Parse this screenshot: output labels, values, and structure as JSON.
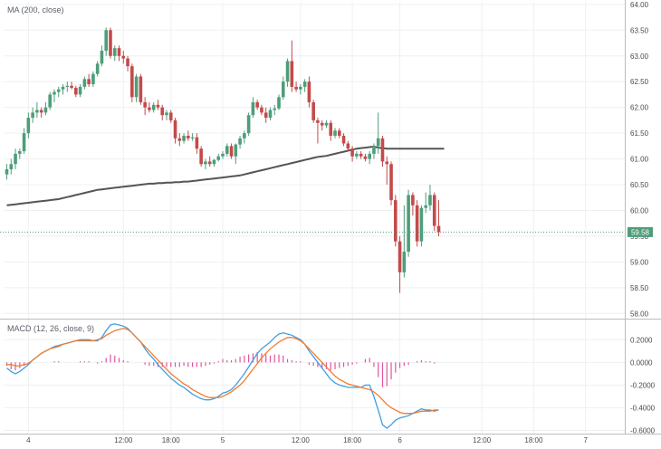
{
  "chart_data": [
    {
      "type": "candlestick",
      "legend": "MA (200, close)",
      "ylim": [
        57.9,
        64.05
      ],
      "yticks": [
        "64.00",
        "63.50",
        "63.00",
        "62.50",
        "62.00",
        "61.50",
        "61.00",
        "60.50",
        "60.00",
        "59.58",
        "59.00",
        "58.50",
        "58.00"
      ],
      "ytick_values": [
        64.0,
        63.5,
        63.0,
        62.5,
        62.0,
        61.5,
        61.0,
        60.5,
        60.0,
        59.5,
        59.0,
        58.5,
        58.0
      ],
      "last_price_label": "59.58",
      "last_price": 59.58,
      "colors": {
        "up": "#4e9d7a",
        "down": "#c44a4a",
        "ma": "#555555",
        "price_line": "#4e9d7a"
      },
      "candles": [
        [
          60.7,
          60.9,
          60.6,
          60.8
        ],
        [
          60.8,
          61.0,
          60.7,
          60.9
        ],
        [
          60.9,
          61.2,
          60.8,
          61.1
        ],
        [
          61.1,
          61.2,
          61.0,
          61.15
        ],
        [
          61.15,
          61.6,
          61.1,
          61.5
        ],
        [
          61.5,
          61.9,
          61.4,
          61.8
        ],
        [
          61.8,
          62.0,
          61.7,
          61.9
        ],
        [
          61.9,
          62.1,
          61.8,
          61.95
        ],
        [
          61.95,
          62.0,
          61.8,
          61.9
        ],
        [
          61.9,
          62.1,
          61.85,
          62.0
        ],
        [
          62.0,
          62.3,
          61.95,
          62.25
        ],
        [
          62.25,
          62.35,
          62.1,
          62.3
        ],
        [
          62.3,
          62.4,
          62.2,
          62.35
        ],
        [
          62.35,
          62.45,
          62.25,
          62.4
        ],
        [
          62.4,
          62.5,
          62.3,
          62.42
        ],
        [
          62.42,
          62.5,
          62.35,
          62.38
        ],
        [
          62.38,
          62.42,
          62.2,
          62.25
        ],
        [
          62.25,
          62.45,
          62.2,
          62.4
        ],
        [
          62.4,
          62.6,
          62.35,
          62.55
        ],
        [
          62.55,
          62.65,
          62.4,
          62.45
        ],
        [
          62.45,
          62.7,
          62.4,
          62.65
        ],
        [
          62.65,
          62.9,
          62.6,
          62.85
        ],
        [
          62.85,
          63.2,
          62.8,
          63.1
        ],
        [
          63.1,
          63.55,
          63.0,
          63.5
        ],
        [
          63.5,
          63.55,
          62.95,
          63.0
        ],
        [
          63.0,
          63.2,
          62.9,
          63.15
        ],
        [
          63.15,
          63.2,
          62.9,
          63.0
        ],
        [
          63.0,
          63.1,
          62.85,
          62.95
        ],
        [
          62.95,
          63.0,
          62.7,
          62.8
        ],
        [
          62.8,
          62.85,
          62.1,
          62.2
        ],
        [
          62.2,
          62.65,
          62.1,
          62.6
        ],
        [
          62.6,
          62.65,
          62.05,
          62.1
        ],
        [
          62.1,
          62.2,
          61.85,
          62.0
        ],
        [
          62.0,
          62.1,
          61.9,
          61.95
        ],
        [
          61.95,
          62.1,
          61.9,
          62.05
        ],
        [
          62.05,
          62.15,
          61.95,
          62.0
        ],
        [
          62.0,
          62.05,
          61.75,
          61.85
        ],
        [
          61.85,
          61.95,
          61.75,
          61.9
        ],
        [
          61.9,
          61.95,
          61.7,
          61.75
        ],
        [
          61.75,
          61.8,
          61.3,
          61.4
        ],
        [
          61.4,
          61.5,
          61.25,
          61.35
        ],
        [
          61.35,
          61.5,
          61.3,
          61.45
        ],
        [
          61.45,
          61.55,
          61.35,
          61.4
        ],
        [
          61.4,
          61.5,
          61.35,
          61.42
        ],
        [
          61.42,
          61.5,
          61.1,
          61.2
        ],
        [
          61.2,
          61.25,
          60.85,
          60.9
        ],
        [
          60.9,
          61.0,
          60.8,
          60.95
        ],
        [
          60.95,
          61.05,
          60.85,
          60.9
        ],
        [
          60.9,
          61.0,
          60.85,
          60.98
        ],
        [
          60.98,
          61.1,
          60.95,
          61.05
        ],
        [
          61.05,
          61.15,
          61.0,
          61.1
        ],
        [
          61.1,
          61.3,
          61.05,
          61.25
        ],
        [
          61.25,
          61.3,
          61.0,
          61.05
        ],
        [
          61.05,
          61.3,
          60.9,
          61.28
        ],
        [
          61.28,
          61.45,
          61.2,
          61.4
        ],
        [
          61.4,
          61.55,
          61.3,
          61.5
        ],
        [
          61.5,
          61.9,
          61.45,
          61.85
        ],
        [
          61.85,
          62.2,
          61.8,
          62.1
        ],
        [
          62.1,
          62.15,
          61.95,
          62.0
        ],
        [
          62.0,
          62.05,
          61.85,
          61.9
        ],
        [
          61.9,
          62.0,
          61.7,
          61.8
        ],
        [
          61.8,
          62.0,
          61.75,
          61.95
        ],
        [
          61.95,
          62.05,
          61.85,
          61.98
        ],
        [
          61.98,
          62.25,
          61.95,
          62.2
        ],
        [
          62.2,
          62.6,
          62.15,
          62.5
        ],
        [
          62.5,
          62.95,
          62.4,
          62.9
        ],
        [
          62.9,
          63.3,
          62.3,
          62.4
        ],
        [
          62.4,
          62.5,
          62.3,
          62.35
        ],
        [
          62.35,
          62.45,
          62.25,
          62.4
        ],
        [
          62.4,
          62.55,
          62.3,
          62.5
        ],
        [
          62.5,
          62.6,
          62.0,
          62.1
        ],
        [
          62.1,
          62.15,
          61.7,
          61.75
        ],
        [
          61.75,
          61.8,
          61.3,
          61.7
        ],
        [
          61.7,
          61.75,
          61.55,
          61.65
        ],
        [
          61.65,
          61.75,
          61.6,
          61.7
        ],
        [
          61.7,
          61.75,
          61.35,
          61.45
        ],
        [
          61.45,
          61.6,
          61.4,
          61.55
        ],
        [
          61.55,
          61.6,
          61.4,
          61.45
        ],
        [
          61.45,
          61.5,
          61.25,
          61.3
        ],
        [
          61.3,
          61.35,
          61.15,
          61.2
        ],
        [
          61.2,
          61.25,
          60.95,
          61.05
        ],
        [
          61.05,
          61.15,
          61.0,
          61.1
        ],
        [
          61.1,
          61.15,
          61.0,
          61.05
        ],
        [
          61.05,
          61.1,
          60.95,
          61.0
        ],
        [
          61.0,
          61.15,
          60.9,
          61.1
        ],
        [
          61.1,
          61.3,
          61.0,
          61.25
        ],
        [
          61.25,
          61.9,
          61.1,
          61.4
        ],
        [
          61.4,
          61.45,
          60.85,
          60.95
        ],
        [
          60.95,
          61.05,
          60.5,
          60.9
        ],
        [
          60.9,
          60.95,
          60.1,
          60.2
        ],
        [
          60.2,
          60.3,
          59.3,
          59.4
        ],
        [
          59.4,
          59.5,
          58.4,
          58.8
        ],
        [
          58.8,
          60.1,
          58.7,
          59.2
        ],
        [
          59.2,
          60.4,
          59.1,
          60.3
        ],
        [
          60.3,
          60.35,
          59.9,
          60.1
        ],
        [
          60.1,
          60.2,
          59.3,
          59.4
        ],
        [
          59.4,
          60.1,
          59.3,
          60.05
        ],
        [
          60.05,
          60.35,
          59.95,
          60.1
        ],
        [
          60.1,
          60.5,
          60.0,
          60.3
        ],
        [
          60.3,
          60.35,
          59.6,
          59.7
        ],
        [
          59.7,
          60.2,
          59.5,
          59.58
        ]
      ],
      "ma": [
        60.1,
        60.11,
        60.12,
        60.13,
        60.14,
        60.15,
        60.16,
        60.17,
        60.18,
        60.19,
        60.2,
        60.21,
        60.22,
        60.24,
        60.26,
        60.28,
        60.3,
        60.32,
        60.34,
        60.36,
        60.38,
        60.4,
        60.41,
        60.42,
        60.43,
        60.44,
        60.45,
        60.46,
        60.47,
        60.48,
        60.49,
        60.5,
        60.51,
        60.52,
        60.52,
        60.53,
        60.53,
        60.54,
        60.54,
        60.55,
        60.55,
        60.56,
        60.56,
        60.57,
        60.58,
        60.59,
        60.6,
        60.61,
        60.62,
        60.63,
        60.64,
        60.65,
        60.66,
        60.67,
        60.68,
        60.7,
        60.72,
        60.74,
        60.76,
        60.78,
        60.8,
        60.82,
        60.84,
        60.86,
        60.88,
        60.9,
        60.92,
        60.94,
        60.96,
        60.98,
        61.0,
        61.02,
        61.04,
        61.05,
        61.06,
        61.08,
        61.1,
        61.12,
        61.14,
        61.16,
        61.18,
        61.2,
        61.21,
        61.22,
        61.23,
        61.24,
        61.22,
        61.21,
        61.2,
        61.2,
        61.2,
        61.2,
        61.2,
        61.2,
        61.2,
        61.2,
        61.2,
        61.2,
        61.2,
        61.2,
        61.2
      ]
    },
    {
      "type": "macd",
      "legend": "MACD (12, 26, close, 9)",
      "ylim": [
        -0.62,
        0.37
      ],
      "yticks": [
        "0.2000",
        "0.0000",
        "-0.2000",
        "-0.4000",
        "-0.6000"
      ],
      "ytick_values": [
        0.2,
        0.0,
        -0.2,
        -0.4,
        -0.6
      ],
      "colors": {
        "macd": "#3d9ee6",
        "signal": "#f47b2b",
        "histogram": "#e0559c"
      },
      "macd": [
        -0.05,
        -0.08,
        -0.1,
        -0.08,
        -0.05,
        -0.02,
        0.02,
        0.05,
        0.08,
        0.1,
        0.12,
        0.14,
        0.15,
        0.16,
        0.17,
        0.18,
        0.19,
        0.2,
        0.2,
        0.2,
        0.19,
        0.19,
        0.22,
        0.28,
        0.33,
        0.34,
        0.33,
        0.32,
        0.3,
        0.26,
        0.22,
        0.18,
        0.12,
        0.07,
        0.03,
        -0.02,
        -0.06,
        -0.1,
        -0.14,
        -0.17,
        -0.2,
        -0.22,
        -0.25,
        -0.28,
        -0.3,
        -0.32,
        -0.33,
        -0.33,
        -0.32,
        -0.3,
        -0.27,
        -0.26,
        -0.24,
        -0.2,
        -0.15,
        -0.1,
        -0.04,
        0.02,
        0.08,
        0.12,
        0.15,
        0.18,
        0.22,
        0.25,
        0.26,
        0.25,
        0.24,
        0.22,
        0.2,
        0.16,
        0.1,
        0.05,
        0.0,
        -0.05,
        -0.1,
        -0.15,
        -0.18,
        -0.2,
        -0.21,
        -0.22,
        -0.22,
        -0.22,
        -0.22,
        -0.2,
        -0.2,
        -0.3,
        -0.42,
        -0.55,
        -0.58,
        -0.55,
        -0.51,
        -0.49,
        -0.48,
        -0.47,
        -0.45,
        -0.43,
        -0.41,
        -0.42,
        -0.42,
        -0.43,
        -0.42
      ],
      "signal": [
        -0.02,
        -0.02,
        -0.03,
        -0.03,
        -0.02,
        -0.01,
        0.02,
        0.05,
        0.08,
        0.1,
        0.12,
        0.13,
        0.14,
        0.16,
        0.17,
        0.18,
        0.19,
        0.19,
        0.19,
        0.19,
        0.19,
        0.2,
        0.21,
        0.24,
        0.26,
        0.28,
        0.29,
        0.3,
        0.29,
        0.26,
        0.22,
        0.18,
        0.14,
        0.1,
        0.06,
        0.02,
        -0.02,
        -0.06,
        -0.1,
        -0.13,
        -0.16,
        -0.19,
        -0.21,
        -0.24,
        -0.26,
        -0.28,
        -0.3,
        -0.31,
        -0.31,
        -0.31,
        -0.3,
        -0.28,
        -0.26,
        -0.23,
        -0.2,
        -0.16,
        -0.11,
        -0.06,
        -0.01,
        0.04,
        0.08,
        0.12,
        0.15,
        0.18,
        0.2,
        0.22,
        0.22,
        0.21,
        0.19,
        0.16,
        0.12,
        0.08,
        0.04,
        0.0,
        -0.04,
        -0.08,
        -0.12,
        -0.15,
        -0.17,
        -0.19,
        -0.2,
        -0.21,
        -0.22,
        -0.23,
        -0.24,
        -0.26,
        -0.29,
        -0.33,
        -0.37,
        -0.4,
        -0.42,
        -0.44,
        -0.45,
        -0.45,
        -0.45,
        -0.44,
        -0.43,
        -0.43,
        -0.43,
        -0.42,
        -0.42
      ]
    }
  ],
  "x_axis": {
    "labels": [
      {
        "text": "4",
        "index": 5
      },
      {
        "text": "12:00",
        "index": 27
      },
      {
        "text": "18:00",
        "index": 38
      },
      {
        "text": "5",
        "index": 50
      },
      {
        "text": "12:00",
        "index": 68
      },
      {
        "text": "18:00",
        "index": 80
      },
      {
        "text": "6",
        "index": 91
      },
      {
        "text": "12:00",
        "index": 110
      },
      {
        "text": "18:00",
        "index": 122
      },
      {
        "text": "7",
        "index": 134
      }
    ]
  }
}
